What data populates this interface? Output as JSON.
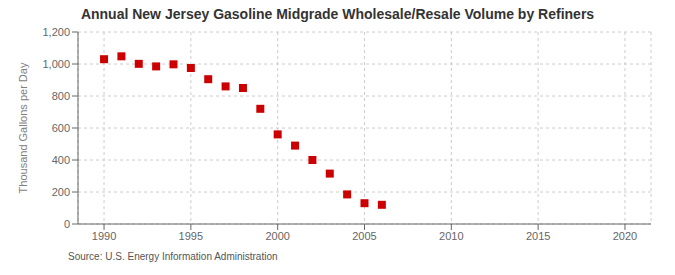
{
  "chart_data": {
    "type": "scatter",
    "title": "Annual New Jersey Gasoline Midgrade Wholesale/Resale Volume by Refiners",
    "ylabel": "Thousand Gallons per Day",
    "annotations": [
      "Source: U.S. Energy Information Administration"
    ],
    "x": [
      1990,
      1991,
      1992,
      1993,
      1994,
      1995,
      1996,
      1997,
      1998,
      1999,
      2000,
      2001,
      2002,
      2003,
      2004,
      2005,
      2006
    ],
    "values": [
      1030,
      1048,
      1001,
      985,
      998,
      975,
      905,
      860,
      850,
      720,
      560,
      490,
      400,
      315,
      185,
      130,
      120
    ],
    "color": "#cc0000",
    "marker": "square",
    "xlim": [
      1988.5,
      2021.5
    ],
    "ylim": [
      0,
      1200
    ],
    "xticks": [
      1990,
      1995,
      2000,
      2005,
      2010,
      2015,
      2020
    ],
    "yticks": [
      0,
      200,
      400,
      {
        "value": 600,
        "label": "600"
      },
      800,
      {
        "value": 1000,
        "label": "1,000"
      },
      {
        "value": 1200,
        "label": "1,200"
      }
    ],
    "grid": true
  }
}
